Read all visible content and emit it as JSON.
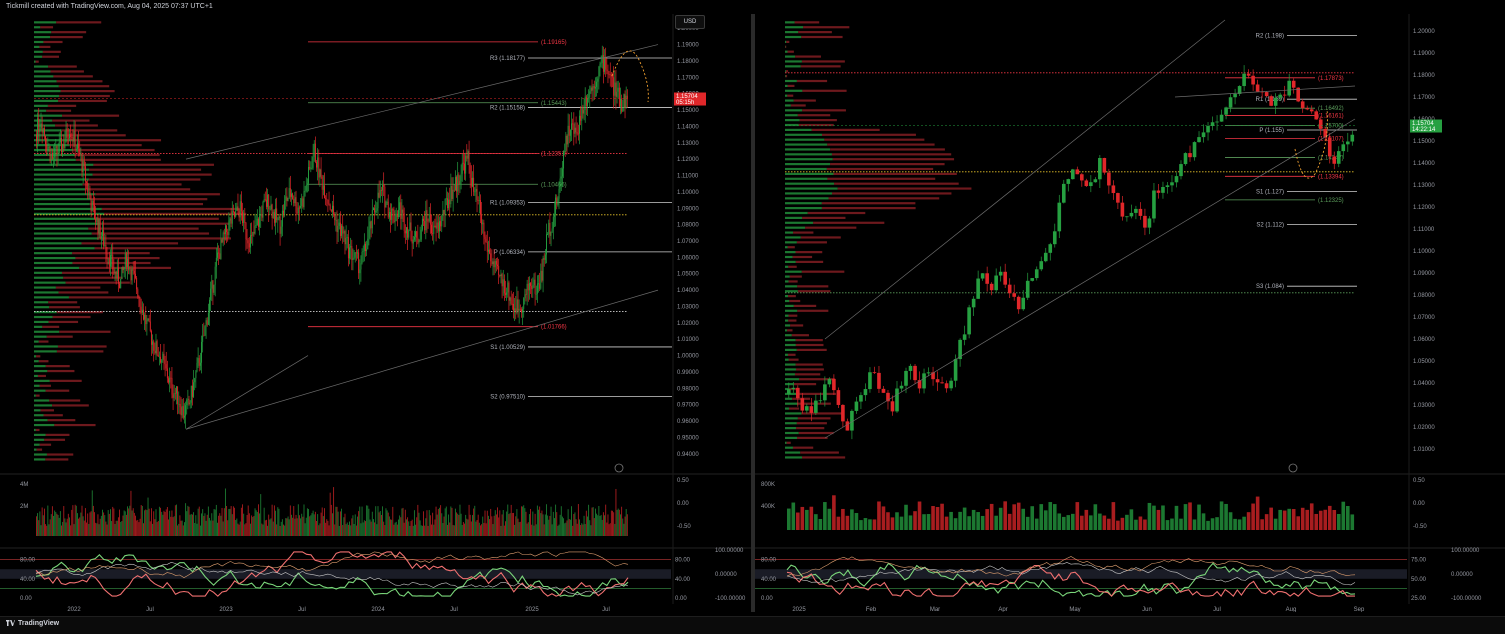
{
  "header": {
    "caption": "Tickmill created with TradingView.com, Aug 04, 2025 07:37 UTC+1"
  },
  "footer": {
    "brand": "TradingView"
  },
  "currency_button": "USD",
  "colors": {
    "up": "#26a041",
    "down": "#e0272a",
    "bg": "#000000",
    "grid": "#1a1a1a",
    "pivot_red": "#f23645",
    "pivot_green": "#5b9c5b"
  },
  "chart_data": [
    {
      "type": "candlestick",
      "panel": "left",
      "timeframe_axis": [
        "2022",
        "Jul",
        "2023",
        "Jul",
        "2024",
        "Jul",
        "2025",
        "Jul"
      ],
      "ylim": [
        0.935,
        1.205
      ],
      "price_ticks": [
        "1.20000",
        "1.19000",
        "1.18000",
        "1.17000",
        "1.16000",
        "1.15000",
        "1.14000",
        "1.13000",
        "1.12000",
        "1.11000",
        "1.10000",
        "1.09000",
        "1.08000",
        "1.07000",
        "1.06000",
        "1.05000",
        "1.04000",
        "1.03000",
        "1.02000",
        "1.01000",
        "1.00000",
        "0.99000",
        "0.98000",
        "0.97000",
        "0.96000",
        "0.95000",
        "0.94000"
      ],
      "last_price": {
        "value": "1.15704",
        "countdown": "05:15h"
      },
      "pivot_levels": [
        {
          "name": "R3 (1.18177)",
          "value": 1.18177
        },
        {
          "name": "R2 (1.15158)",
          "value": 1.15158
        },
        {
          "name": "R1 (1.09353)",
          "value": 1.09353
        },
        {
          "name": "P (1.06334)",
          "value": 1.06334
        },
        {
          "name": "S1 (1.00529)",
          "value": 1.00529
        },
        {
          "name": "S2 (0.97510)",
          "value": 0.9751
        }
      ],
      "fib_levels": [
        {
          "name": "(1.19165)",
          "value": 1.19165
        },
        {
          "name": "(1.15443)",
          "value": 1.15443
        },
        {
          "name": "(1.12351)",
          "value": 1.12351
        },
        {
          "name": "(1.10466)",
          "value": 1.10466
        },
        {
          "name": "(1.01766)",
          "value": 1.01766
        }
      ],
      "price_path": [
        1.135,
        1.145,
        1.13,
        1.12,
        1.125,
        1.13,
        1.14,
        1.13,
        1.12,
        1.105,
        1.09,
        1.08,
        1.07,
        1.06,
        1.05,
        1.045,
        1.06,
        1.05,
        1.04,
        1.025,
        1.015,
        1.005,
        1.0,
        0.99,
        0.98,
        0.975,
        0.965,
        0.97,
        0.985,
        1.0,
        1.02,
        1.04,
        1.06,
        1.07,
        1.08,
        1.085,
        1.09,
        1.075,
        1.07,
        1.08,
        1.09,
        1.095,
        1.085,
        1.08,
        1.095,
        1.1,
        1.09,
        1.095,
        1.11,
        1.125,
        1.11,
        1.1,
        1.09,
        1.08,
        1.075,
        1.065,
        1.06,
        1.055,
        1.065,
        1.08,
        1.095,
        1.1,
        1.09,
        1.085,
        1.09,
        1.08,
        1.075,
        1.07,
        1.08,
        1.085,
        1.075,
        1.08,
        1.09,
        1.1,
        1.105,
        1.115,
        1.12,
        1.1,
        1.09,
        1.07,
        1.06,
        1.05,
        1.045,
        1.04,
        1.03,
        1.03,
        1.035,
        1.045,
        1.04,
        1.05,
        1.075,
        1.085,
        1.1,
        1.13,
        1.14,
        1.135,
        1.15,
        1.16,
        1.165,
        1.175,
        1.18,
        1.17,
        1.16,
        1.155,
        1.157
      ],
      "volume_axis": [
        "4M",
        "2M"
      ],
      "volume_right_axis": [
        "0.50",
        "0.00",
        "-0.50"
      ],
      "osc_left_axis": [
        "80.00",
        "40.00",
        "0.00"
      ],
      "osc_right_axis_a": [
        "80.00",
        "40.00",
        "0.00"
      ],
      "osc_right_axis_b": [
        "100.00000",
        "0.00000",
        "-100.00000"
      ]
    },
    {
      "type": "candlestick",
      "panel": "right",
      "timeframe_axis": [
        "2025",
        "Feb",
        "Mar",
        "Apr",
        "May",
        "Jun",
        "Jul",
        "Aug",
        "Sep"
      ],
      "ylim": [
        1.005,
        1.205
      ],
      "price_ticks": [
        "1.20000",
        "1.19000",
        "1.18000",
        "1.17000",
        "1.16000",
        "1.15000",
        "1.14000",
        "1.13000",
        "1.12000",
        "1.11000",
        "1.10000",
        "1.09000",
        "1.08000",
        "1.07000",
        "1.06000",
        "1.05000",
        "1.04000",
        "1.03000",
        "1.02000",
        "1.01000"
      ],
      "last_price": {
        "value": "1.15704",
        "countdown": "14:22:14"
      },
      "pivot_levels": [
        {
          "name": "R2 (1.198)",
          "value": 1.198
        },
        {
          "name": "R1 (1.169)",
          "value": 1.169
        },
        {
          "name": "P (1.155)",
          "value": 1.155
        },
        {
          "name": "S1 (1.127)",
          "value": 1.127
        },
        {
          "name": "S2 (1.112)",
          "value": 1.112
        },
        {
          "name": "S3 (1.084)",
          "value": 1.084
        }
      ],
      "fib_levels": [
        {
          "name": "(1.17873)",
          "value": 1.17873
        },
        {
          "name": "(1.16492)",
          "value": 1.16492
        },
        {
          "name": "(1.16161)",
          "value": 1.16161
        },
        {
          "name": "(1.15700)",
          "value": 1.157
        },
        {
          "name": "(1.15107)",
          "value": 1.15107
        },
        {
          "name": "(1.14247)",
          "value": 1.14247
        },
        {
          "name": "(1.13394)",
          "value": 1.13394
        },
        {
          "name": "(1.12325)",
          "value": 1.12325
        }
      ],
      "price_path": [
        1.035,
        1.04,
        1.03,
        1.025,
        1.035,
        1.04,
        1.03,
        1.02,
        1.03,
        1.04,
        1.045,
        1.035,
        1.03,
        1.04,
        1.045,
        1.04,
        1.045,
        1.04,
        1.035,
        1.05,
        1.065,
        1.08,
        1.09,
        1.085,
        1.09,
        1.08,
        1.075,
        1.085,
        1.09,
        1.1,
        1.11,
        1.13,
        1.14,
        1.135,
        1.13,
        1.14,
        1.13,
        1.12,
        1.115,
        1.12,
        1.11,
        1.125,
        1.13,
        1.13,
        1.14,
        1.145,
        1.15,
        1.155,
        1.16,
        1.165,
        1.17,
        1.18,
        1.175,
        1.17,
        1.165,
        1.17,
        1.175,
        1.17,
        1.165,
        1.16,
        1.15,
        1.14,
        1.15,
        1.155
      ],
      "volume_axis": [
        "800K",
        "400K"
      ],
      "volume_right_axis": [
        "0.50",
        "0.00",
        "-0.50"
      ],
      "osc_left_axis": [
        "80.00",
        "40.00",
        "0.00"
      ],
      "osc_right_axis_a": [
        "75.00",
        "50.00",
        "25.00"
      ],
      "osc_right_axis_b": [
        "100.00000",
        "0.00000",
        "-100.00000"
      ]
    }
  ]
}
